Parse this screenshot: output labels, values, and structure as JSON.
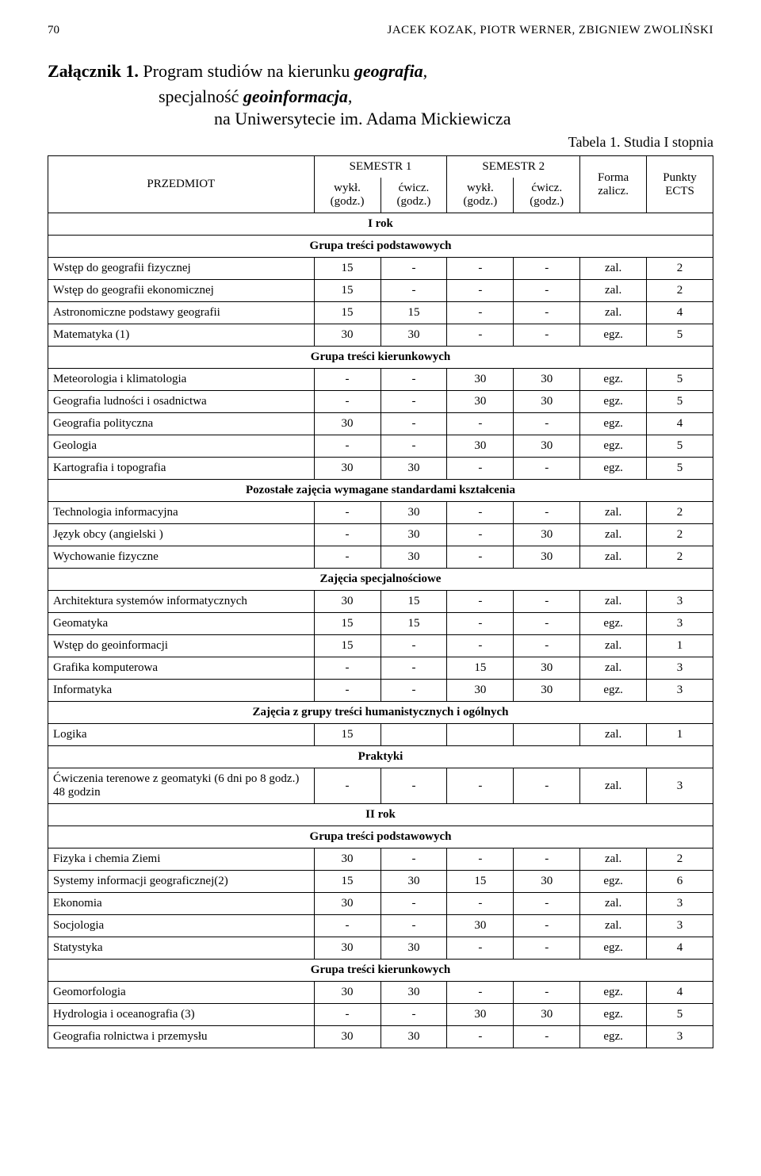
{
  "page": {
    "number": "70",
    "running": "JACEK KOZAK, PIOTR WERNER, ZBIGNIEW ZWOLIŃSKI"
  },
  "titles": {
    "attach": "Załącznik 1.",
    "line1a": "Program studiów na kierunku ",
    "line1b": "geografia",
    "line1c": ",",
    "line2a": "specjalność ",
    "line2b": "geoinformacja",
    "line2c": ",",
    "line3": "na Uniwersytecie im. Adama Mickiewicza",
    "tableCaption": "Tabela 1. Studia I stopnia"
  },
  "headers": {
    "przedmiot": "PRZEDMIOT",
    "sem1": "SEMESTR 1",
    "sem2": "SEMESTR 2",
    "forma": "Forma zalicz.",
    "punkty": "Punkty ECTS",
    "wykl": "wykł. (godz.)",
    "cwicz": "ćwicz. (godz.)"
  },
  "sections": {
    "rok1": "I rok",
    "podst": "Grupa treści podstawowych",
    "kier": "Grupa treści kierunkowych",
    "pozost": "Pozostałe zajęcia wymagane standardami kształcenia",
    "spec": "Zajęcia specjalnościowe",
    "human": "Zajęcia z grupy treści humanistycznych i ogólnych",
    "prakt": "Praktyki",
    "rok2": "II rok"
  },
  "rows": {
    "r1": {
      "n": "Wstęp do geografii fizycznej",
      "a": "15",
      "b": "-",
      "c": "-",
      "d": "-",
      "f": "zal.",
      "p": "2"
    },
    "r2": {
      "n": "Wstęp do geografii ekonomicznej",
      "a": "15",
      "b": "-",
      "c": "-",
      "d": "-",
      "f": "zal.",
      "p": "2"
    },
    "r3": {
      "n": "Astronomiczne podstawy geografii",
      "a": "15",
      "b": "15",
      "c": "-",
      "d": "-",
      "f": "zal.",
      "p": "4"
    },
    "r4": {
      "n": "Matematyka (1)",
      "a": "30",
      "b": "30",
      "c": "-",
      "d": "-",
      "f": "egz.",
      "p": "5"
    },
    "r5": {
      "n": "Meteorologia i klimatologia",
      "a": "-",
      "b": "-",
      "c": "30",
      "d": "30",
      "f": "egz.",
      "p": "5"
    },
    "r6": {
      "n": "Geografia ludności i osadnictwa",
      "a": "-",
      "b": "-",
      "c": "30",
      "d": "30",
      "f": "egz.",
      "p": "5"
    },
    "r7": {
      "n": "Geografia polityczna",
      "a": "30",
      "b": "-",
      "c": "-",
      "d": "-",
      "f": "egz.",
      "p": "4"
    },
    "r8": {
      "n": "Geologia",
      "a": "-",
      "b": "-",
      "c": "30",
      "d": "30",
      "f": "egz.",
      "p": "5"
    },
    "r9": {
      "n": "Kartografia i topografia",
      "a": "30",
      "b": "30",
      "c": "-",
      "d": "-",
      "f": "egz.",
      "p": "5"
    },
    "r10": {
      "n": "Technologia informacyjna",
      "a": "-",
      "b": "30",
      "c": "-",
      "d": "-",
      "f": "zal.",
      "p": "2"
    },
    "r11": {
      "n": "Język obcy (angielski )",
      "a": "-",
      "b": "30",
      "c": "-",
      "d": "30",
      "f": "zal.",
      "p": "2"
    },
    "r12": {
      "n": "Wychowanie fizyczne",
      "a": "-",
      "b": "30",
      "c": "-",
      "d": "30",
      "f": "zal.",
      "p": "2"
    },
    "r13": {
      "n": "Architektura systemów informatycznych",
      "a": "30",
      "b": "15",
      "c": "-",
      "d": "-",
      "f": "zal.",
      "p": "3"
    },
    "r14": {
      "n": "Geomatyka",
      "a": "15",
      "b": "15",
      "c": "-",
      "d": "-",
      "f": "egz.",
      "p": "3"
    },
    "r15": {
      "n": "Wstęp do geoinformacji",
      "a": "15",
      "b": "-",
      "c": "-",
      "d": "-",
      "f": "zal.",
      "p": "1"
    },
    "r16": {
      "n": "Grafika komputerowa",
      "a": "-",
      "b": "-",
      "c": "15",
      "d": "30",
      "f": "zal.",
      "p": "3"
    },
    "r17": {
      "n": "Informatyka",
      "a": "-",
      "b": "-",
      "c": "30",
      "d": "30",
      "f": "egz.",
      "p": "3"
    },
    "r18": {
      "n": "Logika",
      "a": "15",
      "b": "",
      "c": "",
      "d": "",
      "f": "zal.",
      "p": "1"
    },
    "r19": {
      "n": "Ćwiczenia terenowe z geomatyki (6 dni po 8 godz.) 48 godzin",
      "a": "-",
      "b": "-",
      "c": "-",
      "d": "-",
      "f": "zal.",
      "p": "3"
    },
    "r20": {
      "n": "Fizyka i chemia Ziemi",
      "a": "30",
      "b": "-",
      "c": "-",
      "d": "-",
      "f": "zal.",
      "p": "2"
    },
    "r21": {
      "n": "Systemy informacji geograficznej(2)",
      "a": "15",
      "b": "30",
      "c": "15",
      "d": "30",
      "f": "egz.",
      "p": "6"
    },
    "r22": {
      "n": "Ekonomia",
      "a": "30",
      "b": "-",
      "c": "-",
      "d": "-",
      "f": "zal.",
      "p": "3"
    },
    "r23": {
      "n": "Socjologia",
      "a": "-",
      "b": "-",
      "c": "30",
      "d": "-",
      "f": "zal.",
      "p": "3"
    },
    "r24": {
      "n": "Statystyka",
      "a": "30",
      "b": "30",
      "c": "-",
      "d": "-",
      "f": "egz.",
      "p": "4"
    },
    "r25": {
      "n": "Geomorfologia",
      "a": "30",
      "b": "30",
      "c": "-",
      "d": "-",
      "f": "egz.",
      "p": "4"
    },
    "r26": {
      "n": "Hydrologia i oceanografia (3)",
      "a": "-",
      "b": "-",
      "c": "30",
      "d": "30",
      "f": "egz.",
      "p": "5"
    },
    "r27": {
      "n": "Geografia rolnictwa i przemysłu",
      "a": "30",
      "b": "30",
      "c": "-",
      "d": "-",
      "f": "egz.",
      "p": "3"
    }
  }
}
